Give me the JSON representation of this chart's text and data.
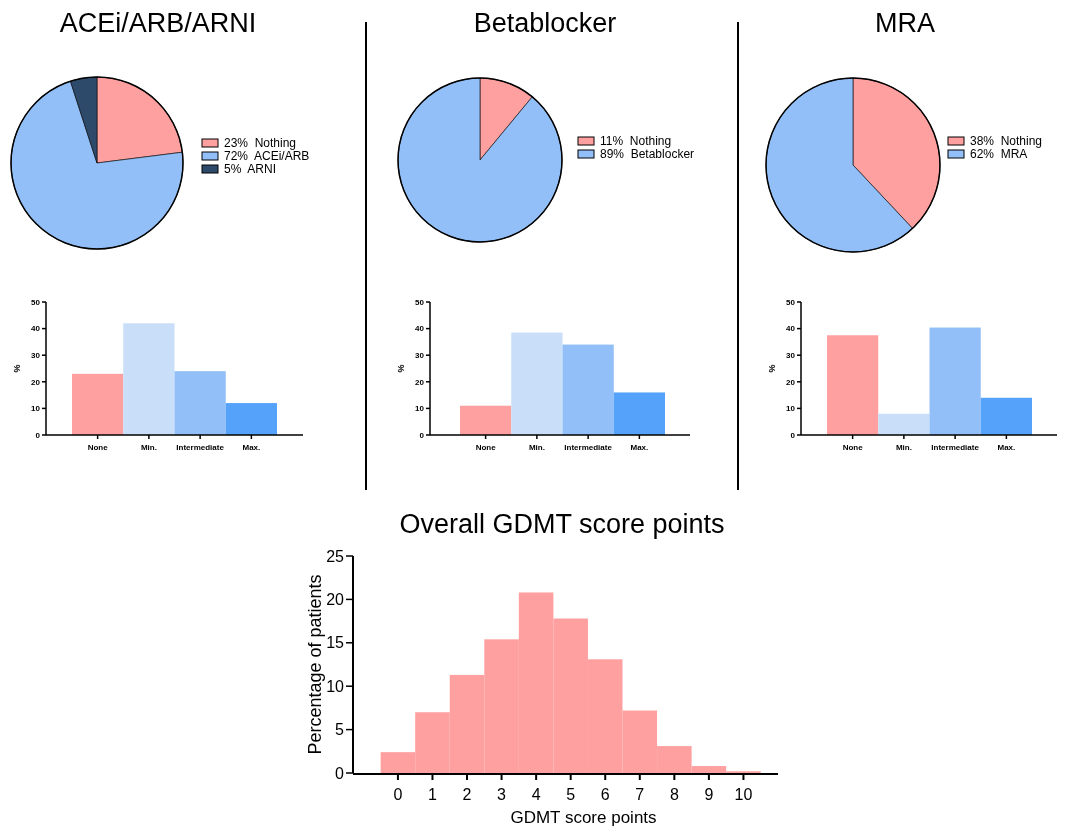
{
  "chart_data": [
    {
      "type": "pie",
      "title": "ACEi/ARB/ARNI",
      "categories": [
        "23%  Nothing",
        "72%  ACEi/ARB",
        "5%  ARNI"
      ],
      "values": [
        23,
        72,
        5
      ],
      "colors": [
        "#ffa0a0",
        "#92bff8",
        "#2e4a6a"
      ],
      "legend": "right"
    },
    {
      "type": "pie",
      "title": "Betablocker",
      "categories": [
        "11%  Nothing",
        "89%  Betablocker"
      ],
      "values": [
        11,
        89
      ],
      "colors": [
        "#ffa0a0",
        "#92bff8"
      ],
      "legend": "right"
    },
    {
      "type": "pie",
      "title": "MRA",
      "categories": [
        "38%  Nothing",
        "62%  MRA"
      ],
      "values": [
        38,
        62
      ],
      "colors": [
        "#ffa0a0",
        "#92bff8"
      ],
      "legend": "right"
    },
    {
      "type": "bar",
      "categories": [
        "None",
        "Min.",
        "Intermediate",
        "Max."
      ],
      "values": [
        23,
        42,
        24,
        12
      ],
      "colors": [
        "#ffa0a0",
        "#c9def8",
        "#92bff8",
        "#55a2fb"
      ],
      "ylabel": "%",
      "ylim": [
        0,
        50
      ],
      "yticks": [
        0,
        10,
        20,
        30,
        40,
        50
      ]
    },
    {
      "type": "bar",
      "categories": [
        "None",
        "Min.",
        "Intermediate",
        "Max."
      ],
      "values": [
        11,
        38.5,
        34,
        16
      ],
      "colors": [
        "#ffa0a0",
        "#c9def8",
        "#92bff8",
        "#55a2fb"
      ],
      "ylabel": "%",
      "ylim": [
        0,
        50
      ],
      "yticks": [
        0,
        10,
        20,
        30,
        40,
        50
      ]
    },
    {
      "type": "bar",
      "categories": [
        "None",
        "Min.",
        "Intermediate",
        "Max."
      ],
      "values": [
        37.5,
        8,
        40.4,
        14
      ],
      "colors": [
        "#ffa0a0",
        "#c9def8",
        "#92bff8",
        "#55a2fb"
      ],
      "ylabel": "%",
      "ylim": [
        0,
        50
      ],
      "yticks": [
        0,
        10,
        20,
        30,
        40,
        50
      ]
    },
    {
      "type": "histogram",
      "title": "Overall GDMT score points",
      "xlabel": "GDMT score points",
      "ylabel": "Percentage of patients",
      "bins": [
        -0.5,
        0.5,
        1.5,
        2.5,
        3.5,
        4.5,
        5.5,
        6.5,
        7.5,
        8.5,
        9.5,
        10.5
      ],
      "values": [
        2.4,
        7.0,
        11.3,
        15.4,
        20.8,
        17.8,
        13.1,
        7.2,
        3.1,
        0.8,
        0.2
      ],
      "color": "#ffa0a0",
      "xlim": [
        -1.3,
        11
      ],
      "xticks": [
        0,
        1,
        2,
        3,
        4,
        5,
        6,
        7,
        8,
        9,
        10
      ],
      "ylim": [
        0,
        25
      ],
      "yticks": [
        0,
        5,
        10,
        15,
        20,
        25
      ]
    }
  ]
}
